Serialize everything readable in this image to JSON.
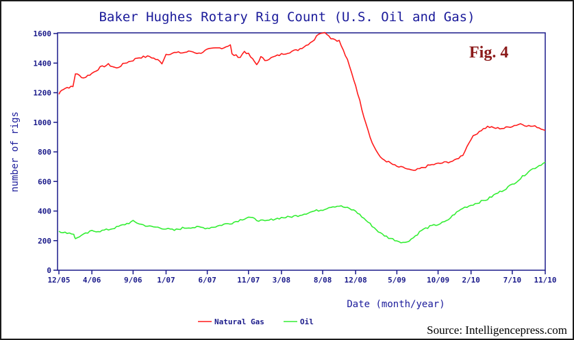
{
  "annotation": "Fig. 4",
  "source": "Source: Intelligencepress.com",
  "chart_data": {
    "type": "line",
    "title": "Baker Hughes Rotary Rig Count (U.S. Oil and Gas)",
    "xlabel": "Date (month/year)",
    "ylabel": "number of rigs",
    "ylim": [
      0,
      1600
    ],
    "yticks": [
      "0",
      "200",
      "400",
      "600",
      "800",
      "1000",
      "1200",
      "1400",
      "1600"
    ],
    "x_tick_labels": [
      "12/05",
      "4/06",
      "9/06",
      "1/07",
      "6/07",
      "11/07",
      "3/08",
      "8/08",
      "12/08",
      "5/09",
      "10/09",
      "2/10",
      "7/10",
      "11/10"
    ],
    "x_tick_months": [
      0,
      4,
      9,
      13,
      18,
      23,
      27,
      32,
      36,
      41,
      46,
      50,
      55,
      59
    ],
    "x_range_months": [
      0,
      59
    ],
    "legend_position": "bottom-center",
    "grid": false,
    "series": [
      {
        "name": "Natural Gas",
        "color": "#ff1a1a",
        "months": [
          0,
          0.3,
          1,
          1.7,
          2,
          3,
          4,
          5,
          6,
          7,
          8,
          9,
          9.5,
          10,
          11,
          12,
          12.5,
          13,
          14,
          15,
          16,
          17,
          18,
          19,
          20,
          20.8,
          21,
          22,
          22.5,
          23,
          24,
          24.5,
          25,
          26,
          27,
          28,
          29,
          30,
          31,
          31.5,
          32,
          32.5,
          33,
          34,
          35,
          36,
          37,
          38,
          39,
          40,
          41,
          42,
          43,
          43.5,
          44,
          45,
          46,
          47,
          47.5,
          48,
          49,
          50,
          51,
          52,
          53,
          54,
          55,
          56,
          57,
          58,
          59
        ],
        "values": [
          1190,
          1220,
          1235,
          1240,
          1330,
          1300,
          1330,
          1370,
          1390,
          1365,
          1400,
          1420,
          1435,
          1440,
          1445,
          1420,
          1400,
          1460,
          1470,
          1470,
          1480,
          1465,
          1490,
          1500,
          1505,
          1525,
          1460,
          1440,
          1480,
          1460,
          1390,
          1440,
          1420,
          1440,
          1460,
          1475,
          1490,
          1520,
          1560,
          1600,
          1610,
          1600,
          1570,
          1550,
          1420,
          1250,
          1040,
          860,
          760,
          730,
          700,
          690,
          670,
          680,
          690,
          710,
          720,
          730,
          735,
          740,
          780,
          890,
          940,
          970,
          960,
          960,
          975,
          990,
          975,
          970,
          945
        ]
      },
      {
        "name": "Oil",
        "color": "#33ee33",
        "months": [
          0,
          0.5,
          1,
          1.8,
          2,
          2.5,
          3,
          4,
          5,
          6,
          7,
          8,
          9,
          10,
          11,
          12,
          13,
          14,
          15,
          16,
          17,
          18,
          19,
          20,
          21,
          22,
          23,
          24,
          25,
          26,
          27,
          28,
          29,
          30,
          31,
          32,
          33,
          34,
          35,
          36,
          37,
          38,
          39,
          40,
          41,
          42,
          43,
          44,
          45,
          46,
          47,
          48,
          49,
          50,
          51,
          52,
          53,
          54,
          55,
          56,
          57,
          58,
          59
        ],
        "values": [
          270,
          250,
          255,
          245,
          210,
          230,
          240,
          265,
          265,
          275,
          290,
          310,
          330,
          310,
          295,
          290,
          280,
          270,
          285,
          290,
          290,
          285,
          295,
          310,
          320,
          340,
          360,
          340,
          330,
          345,
          355,
          360,
          370,
          385,
          400,
          410,
          430,
          435,
          420,
          400,
          350,
          300,
          250,
          220,
          200,
          185,
          220,
          270,
          295,
          310,
          330,
          380,
          420,
          440,
          460,
          480,
          515,
          545,
          580,
          620,
          670,
          700,
          730
        ]
      }
    ]
  }
}
